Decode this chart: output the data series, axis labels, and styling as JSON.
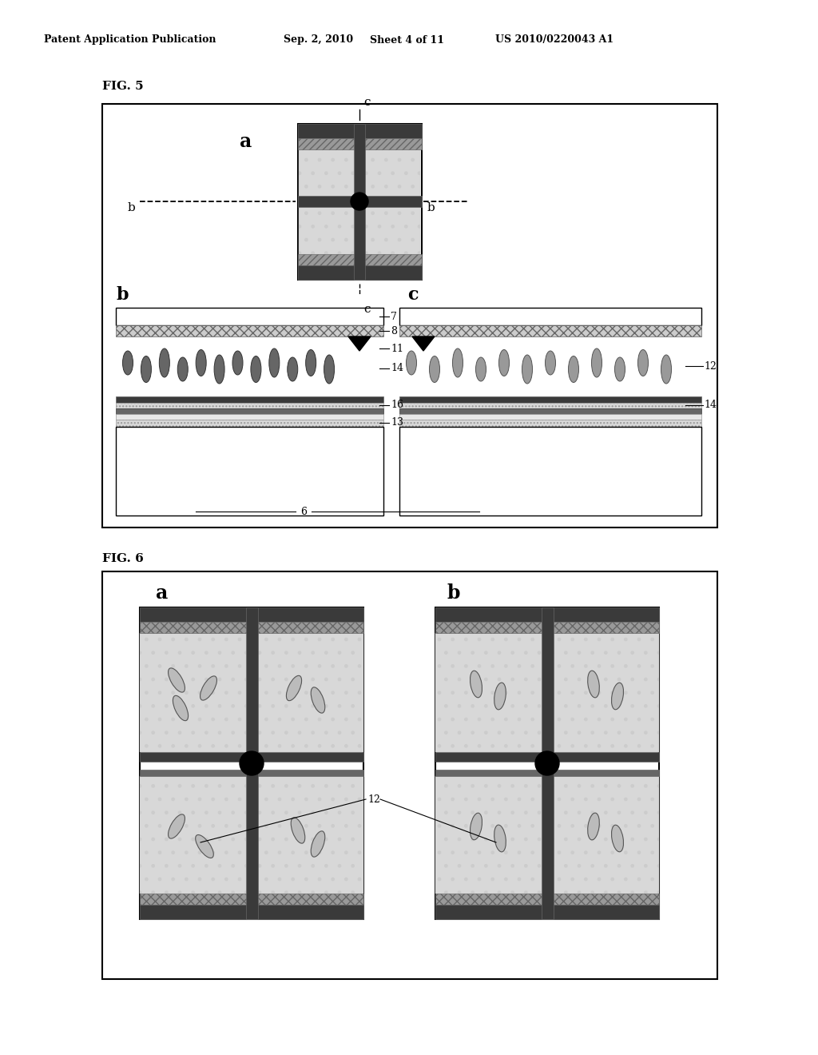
{
  "bg": "#ffffff",
  "header_left": "Patent Application Publication",
  "header_date": "Sep. 2, 2010",
  "header_sheet": "Sheet 4 of 11",
  "header_patent": "US 2010/0220043 A1",
  "dark1": "#3a3a3a",
  "dark2": "#666666",
  "med": "#999999",
  "light": "#cccccc",
  "dot": "#d8d8d8",
  "white": "#ffffff"
}
